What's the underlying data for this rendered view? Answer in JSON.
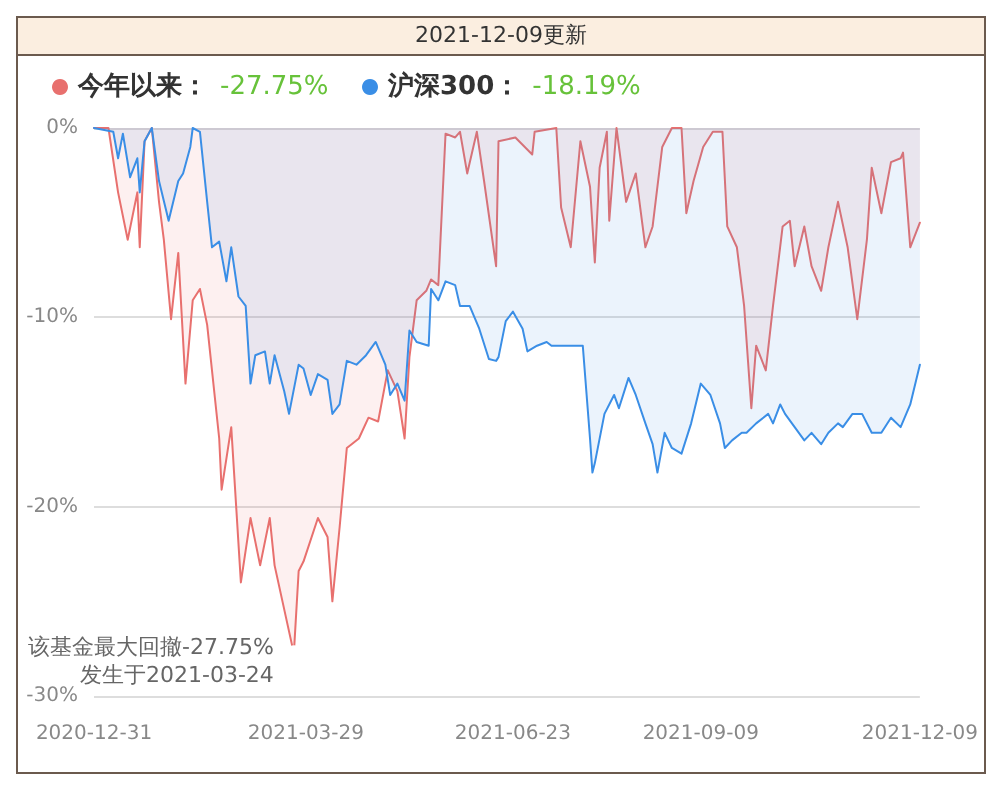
{
  "chart_data": {
    "type": "area",
    "title": "2021-12-09更新",
    "xlim": [
      "2020-12-31",
      "2021-12-09"
    ],
    "xticks": [
      "2020-12-31",
      "2021-03-29",
      "2021-06-23",
      "2021-09-09",
      "2021-12-09"
    ],
    "ylim": [
      -30,
      0
    ],
    "yticks": [
      {
        "value": 0,
        "label": "0%"
      },
      {
        "value": -10,
        "label": "-10%"
      },
      {
        "value": -20,
        "label": "-20%"
      },
      {
        "value": -30,
        "label": "-30%"
      }
    ],
    "grid": "y",
    "legend": "top left",
    "marker": "none",
    "line_style": "solid",
    "series": [
      {
        "name": "今年以来：",
        "color": "#e8706e",
        "x": [
          "2020-12-31",
          "2021-01-06",
          "2021-01-10",
          "2021-01-14",
          "2021-01-18",
          "2021-01-19",
          "2021-01-21",
          "2021-01-24",
          "2021-01-27",
          "2021-01-29",
          "2021-02-01",
          "2021-02-04",
          "2021-02-07",
          "2021-02-10",
          "2021-02-13",
          "2021-02-16",
          "2021-02-18",
          "2021-02-21",
          "2021-02-22",
          "2021-02-26",
          "2021-03-02",
          "2021-03-06",
          "2021-03-10",
          "2021-03-14",
          "2021-03-16",
          "2021-03-24",
          "2021-03-26",
          "2021-03-28",
          "2021-04-03",
          "2021-04-07",
          "2021-04-09",
          "2021-04-12",
          "2021-04-15",
          "2021-04-17",
          "2021-04-20",
          "2021-04-24",
          "2021-04-28",
          "2021-05-02",
          "2021-05-06",
          "2021-05-09",
          "2021-05-11",
          "2021-05-14",
          "2021-05-18",
          "2021-05-20",
          "2021-05-23",
          "2021-05-26",
          "2021-05-30",
          "2021-06-01",
          "2021-06-04",
          "2021-06-08",
          "2021-06-11",
          "2021-06-16",
          "2021-06-17",
          "2021-06-24",
          "2021-07-01",
          "2021-07-02",
          "2021-07-11",
          "2021-07-13",
          "2021-07-17",
          "2021-07-21",
          "2021-07-25",
          "2021-07-27",
          "2021-07-29",
          "2021-08-01",
          "2021-08-02",
          "2021-08-05",
          "2021-08-09",
          "2021-08-13",
          "2021-08-17",
          "2021-08-20",
          "2021-08-24",
          "2021-08-28",
          "2021-09-01",
          "2021-09-03",
          "2021-09-06",
          "2021-09-10",
          "2021-09-14",
          "2021-09-18",
          "2021-09-20",
          "2021-09-24",
          "2021-09-27",
          "2021-09-30",
          "2021-10-02",
          "2021-10-06",
          "2021-10-09",
          "2021-10-13",
          "2021-10-16",
          "2021-10-18",
          "2021-10-22",
          "2021-10-25",
          "2021-10-29",
          "2021-11-01",
          "2021-11-05",
          "2021-11-09",
          "2021-11-13",
          "2021-11-17",
          "2021-11-19",
          "2021-11-23",
          "2021-11-27",
          "2021-12-01",
          "2021-12-02",
          "2021-12-05",
          "2021-12-09"
        ],
        "values": [
          0,
          0,
          -3.4,
          -5.9,
          -3.4,
          -6.3,
          -0.7,
          0,
          -3.9,
          -5.9,
          -10.1,
          -6.6,
          -13.5,
          -9.1,
          -8.5,
          -10.4,
          -12.8,
          -16.4,
          -19.1,
          -15.8,
          -24.0,
          -20.6,
          -23.1,
          -20.6,
          -23.1,
          -27.75,
          -23.4,
          -22.9,
          -20.6,
          -21.6,
          -25.0,
          -21.1,
          -16.9,
          -16.7,
          -16.4,
          -15.3,
          -15.5,
          -12.8,
          -13.9,
          -16.4,
          -12.1,
          -9.1,
          -8.6,
          -8.0,
          -8.3,
          -0.3,
          -0.5,
          -0.2,
          -2.4,
          -0.2,
          -2.8,
          -7.3,
          -0.7,
          -0.5,
          -1.4,
          -0.2,
          0,
          -4.2,
          -6.3,
          -0.7,
          -3.1,
          -7.1,
          -2.1,
          -0.2,
          -4.9,
          0,
          -3.9,
          -2.4,
          -6.3,
          -5.2,
          -1.0,
          0,
          0,
          -4.5,
          -2.8,
          -1.0,
          -0.2,
          -0.2,
          -5.2,
          -6.3,
          -9.4,
          -14.8,
          -11.5,
          -12.8,
          -9.4,
          -5.2,
          -4.9,
          -7.3,
          -5.2,
          -7.3,
          -8.6,
          -6.3,
          -3.9,
          -6.3,
          -10.1,
          -5.9,
          -2.1,
          -4.5,
          -1.8,
          -1.6,
          -1.3,
          -6.3,
          -5.0
        ]
      },
      {
        "name": "沪深300：",
        "color": "#3a8ee6",
        "x": [
          "2020-12-31",
          "2021-01-08",
          "2021-01-10",
          "2021-01-12",
          "2021-01-15",
          "2021-01-18",
          "2021-01-19",
          "2021-01-21",
          "2021-01-24",
          "2021-01-27",
          "2021-01-31",
          "2021-02-04",
          "2021-02-06",
          "2021-02-09",
          "2021-02-10",
          "2021-02-13",
          "2021-02-16",
          "2021-02-18",
          "2021-02-21",
          "2021-02-24",
          "2021-02-26",
          "2021-03-01",
          "2021-03-04",
          "2021-03-06",
          "2021-03-08",
          "2021-03-12",
          "2021-03-14",
          "2021-03-16",
          "2021-03-20",
          "2021-03-22",
          "2021-03-26",
          "2021-03-28",
          "2021-03-31",
          "2021-04-03",
          "2021-04-07",
          "2021-04-09",
          "2021-04-12",
          "2021-04-15",
          "2021-04-19",
          "2021-04-23",
          "2021-04-27",
          "2021-05-01",
          "2021-05-03",
          "2021-05-06",
          "2021-05-09",
          "2021-05-11",
          "2021-05-14",
          "2021-05-19",
          "2021-05-20",
          "2021-05-23",
          "2021-05-26",
          "2021-05-30",
          "2021-06-01",
          "2021-06-05",
          "2021-06-09",
          "2021-06-13",
          "2021-06-16",
          "2021-06-17",
          "2021-06-20",
          "2021-06-23",
          "2021-06-27",
          "2021-06-29",
          "2021-07-03",
          "2021-07-07",
          "2021-07-09",
          "2021-07-11",
          "2021-07-14",
          "2021-07-18",
          "2021-07-22",
          "2021-07-25",
          "2021-07-26",
          "2021-07-27",
          "2021-07-31",
          "2021-08-04",
          "2021-08-06",
          "2021-08-10",
          "2021-08-13",
          "2021-08-17",
          "2021-08-20",
          "2021-08-22",
          "2021-08-25",
          "2021-08-28",
          "2021-09-01",
          "2021-09-05",
          "2021-09-09",
          "2021-09-13",
          "2021-09-17",
          "2021-09-19",
          "2021-09-22",
          "2021-09-26",
          "2021-09-28",
          "2021-10-02",
          "2021-10-07",
          "2021-10-09",
          "2021-10-12",
          "2021-10-14",
          "2021-10-18",
          "2021-10-22",
          "2021-10-25",
          "2021-10-29",
          "2021-11-01",
          "2021-11-05",
          "2021-11-07",
          "2021-11-11",
          "2021-11-15",
          "2021-11-19",
          "2021-11-23",
          "2021-11-27",
          "2021-12-01",
          "2021-12-05",
          "2021-12-09"
        ],
        "values": [
          0,
          -0.2,
          -1.6,
          -0.3,
          -2.6,
          -1.6,
          -3.4,
          -0.7,
          0,
          -2.8,
          -4.9,
          -2.8,
          -2.4,
          -1.0,
          0,
          -0.2,
          -3.9,
          -6.3,
          -6.0,
          -8.1,
          -6.3,
          -8.9,
          -9.4,
          -13.5,
          -12.0,
          -11.8,
          -13.5,
          -12.0,
          -13.9,
          -15.1,
          -12.5,
          -12.7,
          -14.1,
          -13.0,
          -13.3,
          -15.1,
          -14.6,
          -12.3,
          -12.5,
          -12.0,
          -11.3,
          -12.5,
          -14.1,
          -13.5,
          -14.4,
          -10.7,
          -11.3,
          -11.5,
          -8.5,
          -9.1,
          -8.1,
          -8.3,
          -9.4,
          -9.4,
          -10.6,
          -12.2,
          -12.3,
          -12.1,
          -10.2,
          -9.7,
          -10.6,
          -11.8,
          -11.5,
          -11.3,
          -11.5,
          -11.5,
          -11.5,
          -11.5,
          -11.5,
          -16.4,
          -18.2,
          -17.7,
          -15.1,
          -14.1,
          -14.8,
          -13.2,
          -14.1,
          -15.6,
          -16.7,
          -18.2,
          -16.1,
          -16.9,
          -17.2,
          -15.6,
          -13.5,
          -14.1,
          -15.6,
          -16.9,
          -16.5,
          -16.1,
          -16.1,
          -15.6,
          -15.1,
          -15.6,
          -14.6,
          -15.1,
          -15.8,
          -16.5,
          -16.1,
          -16.7,
          -16.1,
          -15.6,
          -15.8,
          -15.1,
          -15.1,
          -16.1,
          -16.1,
          -15.3,
          -15.8,
          -14.6,
          -12.5
        ]
      }
    ],
    "annotations": [
      "-27.75%",
      "-18.19%",
      {
        "text": "该基金最大回撤-27.75%\n发生于2021-03-24",
        "x": "2021-03-24",
        "y": -27.75
      }
    ]
  }
}
